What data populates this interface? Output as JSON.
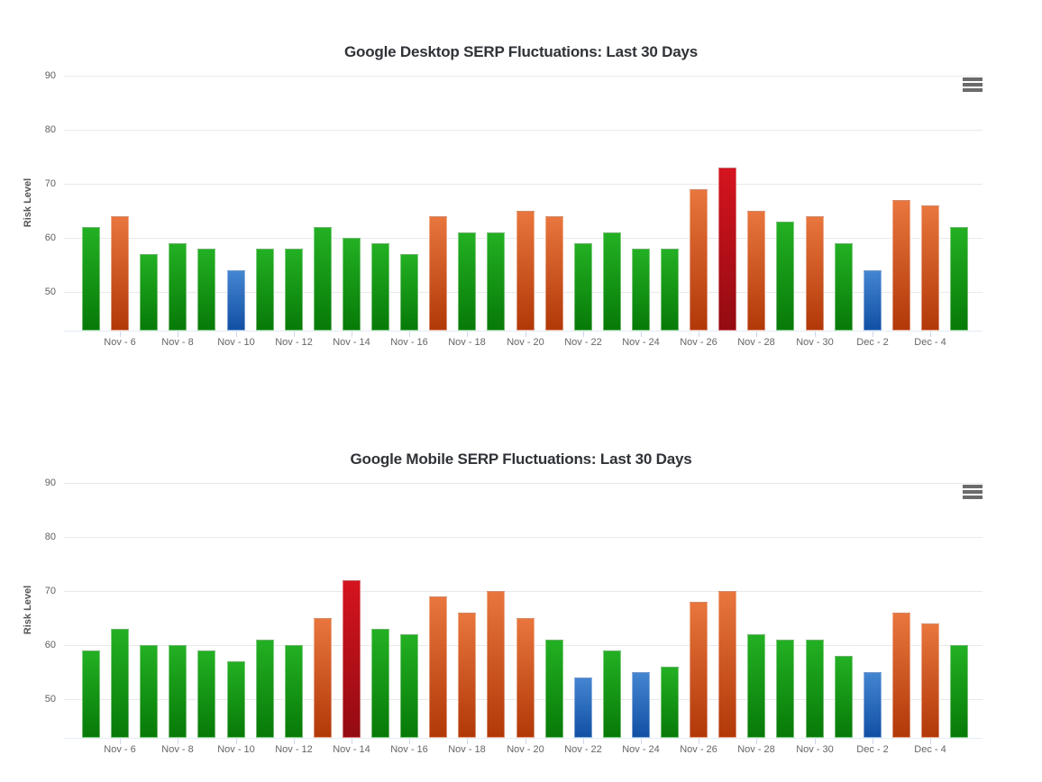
{
  "palette": {
    "green": [
      "#23b023",
      "#077a07"
    ],
    "orange": [
      "#e8763d",
      "#b23808"
    ],
    "red": [
      "#d5141f",
      "#930b11"
    ],
    "blue": [
      "#4485d1",
      "#1150a4"
    ],
    "grid_color": "#e9e9e9",
    "axis_line_color": "#e4ebf5",
    "tick_color": "#ccd6eb",
    "title_color": "#2f3237",
    "label_color": "#666666",
    "menu_icon_color": "#6b6b6b"
  },
  "chart_data": [
    {
      "type": "bar",
      "title": "Google Desktop SERP Fluctuations: Last 30 Days",
      "ylabel": "Risk Level",
      "xlabel": "",
      "ylim": [
        43,
        95
      ],
      "y_ticks": [
        90,
        80,
        70,
        60,
        50
      ],
      "grid": true,
      "legend": false,
      "menu_icon": "hamburger-menu-icon",
      "x_tick_labels": [
        "Nov - 6",
        "Nov - 8",
        "Nov - 10",
        "Nov - 12",
        "Nov - 14",
        "Nov - 16",
        "Nov - 18",
        "Nov - 20",
        "Nov - 22",
        "Nov - 24",
        "Nov - 26",
        "Nov - 28",
        "Nov - 30",
        "Dec - 2",
        "Dec - 4"
      ],
      "categories": [
        "Nov 5",
        "Nov 6",
        "Nov 7",
        "Nov 8",
        "Nov 9",
        "Nov 10",
        "Nov 11",
        "Nov 12",
        "Nov 13",
        "Nov 14",
        "Nov 15",
        "Nov 16",
        "Nov 17",
        "Nov 18",
        "Nov 19",
        "Nov 20",
        "Nov 21",
        "Nov 22",
        "Nov 23",
        "Nov 24",
        "Nov 25",
        "Nov 26",
        "Nov 27",
        "Nov 28",
        "Nov 29",
        "Nov 30",
        "Dec 1",
        "Dec 2",
        "Dec 3",
        "Dec 4",
        "Dec 5"
      ],
      "values": [
        62,
        64,
        57,
        59,
        58,
        54,
        58,
        58,
        62,
        60,
        59,
        57,
        64,
        61,
        61,
        65,
        64,
        59,
        61,
        58,
        58,
        69,
        73,
        65,
        63,
        64,
        59,
        54,
        67,
        66,
        62
      ],
      "bar_colors": [
        "green",
        "orange",
        "green",
        "green",
        "green",
        "blue",
        "green",
        "green",
        "green",
        "green",
        "green",
        "green",
        "orange",
        "green",
        "green",
        "orange",
        "orange",
        "green",
        "green",
        "green",
        "green",
        "orange",
        "red",
        "orange",
        "green",
        "orange",
        "green",
        "blue",
        "orange",
        "orange",
        "green"
      ]
    },
    {
      "type": "bar",
      "title": "Google Mobile SERP Fluctuations: Last 30 Days",
      "ylabel": "Risk Level",
      "xlabel": "",
      "ylim": [
        43,
        95
      ],
      "y_ticks": [
        90,
        80,
        70,
        60,
        50
      ],
      "grid": true,
      "legend": false,
      "menu_icon": "hamburger-menu-icon",
      "x_tick_labels": [
        "Nov - 6",
        "Nov - 8",
        "Nov - 10",
        "Nov - 12",
        "Nov - 14",
        "Nov - 16",
        "Nov - 18",
        "Nov - 20",
        "Nov - 22",
        "Nov - 24",
        "Nov - 26",
        "Nov - 28",
        "Nov - 30",
        "Dec - 2",
        "Dec - 4"
      ],
      "categories": [
        "Nov 5",
        "Nov 6",
        "Nov 7",
        "Nov 8",
        "Nov 9",
        "Nov 10",
        "Nov 11",
        "Nov 12",
        "Nov 13",
        "Nov 14",
        "Nov 15",
        "Nov 16",
        "Nov 17",
        "Nov 18",
        "Nov 19",
        "Nov 20",
        "Nov 21",
        "Nov 22",
        "Nov 23",
        "Nov 24",
        "Nov 25",
        "Nov 26",
        "Nov 27",
        "Nov 28",
        "Nov 29",
        "Nov 30",
        "Dec 1",
        "Dec 2",
        "Dec 3",
        "Dec 4",
        "Dec 5"
      ],
      "values": [
        59,
        63,
        60,
        60,
        59,
        57,
        61,
        60,
        65,
        72,
        63,
        62,
        69,
        66,
        70,
        65,
        61,
        54,
        59,
        55,
        56,
        68,
        70,
        62,
        61,
        61,
        58,
        55,
        66,
        64,
        60
      ],
      "bar_colors": [
        "green",
        "green",
        "green",
        "green",
        "green",
        "green",
        "green",
        "green",
        "orange",
        "red",
        "green",
        "green",
        "orange",
        "orange",
        "orange",
        "orange",
        "green",
        "blue",
        "green",
        "blue",
        "green",
        "orange",
        "orange",
        "green",
        "green",
        "green",
        "green",
        "blue",
        "orange",
        "orange",
        "green"
      ]
    }
  ]
}
